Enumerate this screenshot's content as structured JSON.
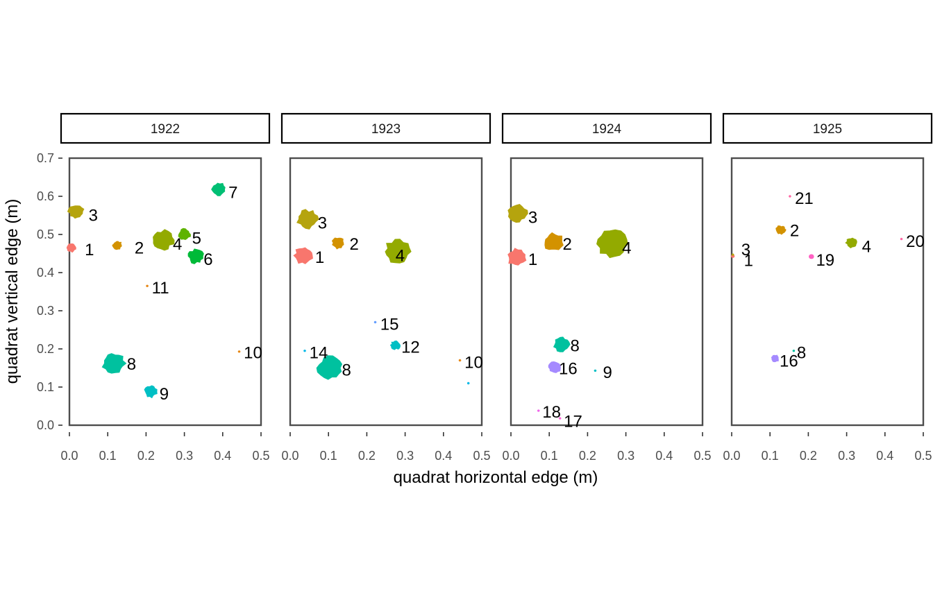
{
  "chart_data": {
    "type": "scatter",
    "xlabel": "quadrat horizontal edge (m)",
    "ylabel": "quadrat vertical edge (m)",
    "xlim": [
      0,
      0.5
    ],
    "ylim": [
      0,
      0.7
    ],
    "x_ticks": [
      "0.0",
      "0.1",
      "0.2",
      "0.3",
      "0.4",
      "0.5"
    ],
    "y_ticks": [
      "0.0",
      "0.1",
      "0.2",
      "0.3",
      "0.4",
      "0.5",
      "0.6",
      "0.7"
    ],
    "legend": "none",
    "grid": false,
    "panels": [
      {
        "title": "1922",
        "plants": [
          {
            "id": "1",
            "x": 0.005,
            "y": 0.465,
            "size": 0.012,
            "color": "#F8766D",
            "lx": 0.04,
            "ly": 0.46
          },
          {
            "id": "2",
            "x": 0.125,
            "y": 0.472,
            "size": 0.012,
            "color": "#D39200",
            "lx": 0.17,
            "ly": 0.465
          },
          {
            "id": "3",
            "x": 0.018,
            "y": 0.56,
            "size": 0.02,
            "color": "#B5A40E",
            "lx": 0.05,
            "ly": 0.55
          },
          {
            "id": "4",
            "x": 0.243,
            "y": 0.485,
            "size": 0.028,
            "color": "#93AA00",
            "lx": 0.27,
            "ly": 0.475
          },
          {
            "id": "5",
            "x": 0.3,
            "y": 0.5,
            "size": 0.016,
            "color": "#5EB300",
            "lx": 0.32,
            "ly": 0.49
          },
          {
            "id": "6",
            "x": 0.33,
            "y": 0.443,
            "size": 0.02,
            "color": "#00BA38",
            "lx": 0.35,
            "ly": 0.435
          },
          {
            "id": "7",
            "x": 0.39,
            "y": 0.618,
            "size": 0.018,
            "color": "#00BF74",
            "lx": 0.415,
            "ly": 0.61
          },
          {
            "id": "8",
            "x": 0.115,
            "y": 0.162,
            "size": 0.03,
            "color": "#00C19F",
            "lx": 0.15,
            "ly": 0.16
          },
          {
            "id": "9",
            "x": 0.212,
            "y": 0.088,
            "size": 0.016,
            "color": "#00BFC4",
            "lx": 0.235,
            "ly": 0.082
          },
          {
            "id": "10",
            "x": 0.443,
            "y": 0.193,
            "size": 0.002,
            "color": "#E68613",
            "lx": 0.455,
            "ly": 0.19
          },
          {
            "id": "11",
            "x": 0.203,
            "y": 0.365,
            "size": 0.002,
            "color": "#E68613",
            "lx": 0.215,
            "ly": 0.36
          }
        ]
      },
      {
        "title": "1923",
        "plants": [
          {
            "id": "1",
            "x": 0.035,
            "y": 0.445,
            "size": 0.024,
            "color": "#F8766D",
            "lx": 0.065,
            "ly": 0.44
          },
          {
            "id": "2",
            "x": 0.125,
            "y": 0.478,
            "size": 0.016,
            "color": "#D39200",
            "lx": 0.155,
            "ly": 0.475
          },
          {
            "id": "3",
            "x": 0.045,
            "y": 0.54,
            "size": 0.026,
            "color": "#B5A40E",
            "lx": 0.072,
            "ly": 0.53
          },
          {
            "id": "4",
            "x": 0.28,
            "y": 0.455,
            "size": 0.034,
            "color": "#93AA00",
            "lx": 0.275,
            "ly": 0.445
          },
          {
            "id": "8",
            "x": 0.105,
            "y": 0.15,
            "size": 0.032,
            "color": "#00C19F",
            "lx": 0.135,
            "ly": 0.145
          },
          {
            "id": "10",
            "x": 0.443,
            "y": 0.17,
            "size": 0.002,
            "color": "#E68613",
            "lx": 0.455,
            "ly": 0.165
          },
          {
            "id": "12",
            "x": 0.275,
            "y": 0.21,
            "size": 0.012,
            "color": "#00BFC4",
            "lx": 0.29,
            "ly": 0.205
          },
          {
            "id": "14",
            "x": 0.038,
            "y": 0.195,
            "size": 0.002,
            "color": "#00B8E7",
            "lx": 0.05,
            "ly": 0.19
          },
          {
            "id": "15",
            "x": 0.222,
            "y": 0.27,
            "size": 0.002,
            "color": "#619CFF",
            "lx": 0.235,
            "ly": 0.265
          },
          {
            "id": "",
            "x": 0.465,
            "y": 0.11,
            "size": 0.002,
            "color": "#00B8E7",
            "lx": 0,
            "ly": 0
          }
        ]
      },
      {
        "title": "1924",
        "plants": [
          {
            "id": "1",
            "x": 0.015,
            "y": 0.44,
            "size": 0.024,
            "color": "#F8766D",
            "lx": 0.045,
            "ly": 0.435
          },
          {
            "id": "2",
            "x": 0.112,
            "y": 0.48,
            "size": 0.026,
            "color": "#D39200",
            "lx": 0.135,
            "ly": 0.475
          },
          {
            "id": "3",
            "x": 0.018,
            "y": 0.555,
            "size": 0.024,
            "color": "#B5A40E",
            "lx": 0.045,
            "ly": 0.545
          },
          {
            "id": "4",
            "x": 0.265,
            "y": 0.475,
            "size": 0.04,
            "color": "#93AA00",
            "lx": 0.29,
            "ly": 0.465
          },
          {
            "id": "8",
            "x": 0.132,
            "y": 0.212,
            "size": 0.02,
            "color": "#00C19F",
            "lx": 0.155,
            "ly": 0.208
          },
          {
            "id": "16",
            "x": 0.115,
            "y": 0.152,
            "size": 0.016,
            "color": "#A58AFF",
            "lx": 0.125,
            "ly": 0.148
          },
          {
            "id": "9",
            "x": 0.22,
            "y": 0.143,
            "size": 0.002,
            "color": "#00BFC4",
            "lx": 0.24,
            "ly": 0.138
          },
          {
            "id": "18",
            "x": 0.072,
            "y": 0.038,
            "size": 0.002,
            "color": "#F066EA",
            "lx": 0.082,
            "ly": 0.035
          },
          {
            "id": "17",
            "x": 0.128,
            "y": 0.018,
            "size": 0.002,
            "color": "#FB61D7",
            "lx": 0.138,
            "ly": 0.01
          }
        ]
      },
      {
        "title": "1925",
        "plants": [
          {
            "id": "1",
            "x": 0.003,
            "y": 0.443,
            "size": 0.004,
            "color": "#F8766D",
            "lx": 0.032,
            "ly": 0.432
          },
          {
            "id": "2",
            "x": 0.128,
            "y": 0.512,
            "size": 0.012,
            "color": "#D39200",
            "lx": 0.152,
            "ly": 0.51
          },
          {
            "id": "3",
            "x": 0.003,
            "y": 0.447,
            "size": 0.002,
            "color": "#B5A40E",
            "lx": 0.025,
            "ly": 0.46
          },
          {
            "id": "4",
            "x": 0.313,
            "y": 0.478,
            "size": 0.014,
            "color": "#93AA00",
            "lx": 0.34,
            "ly": 0.468
          },
          {
            "id": "8",
            "x": 0.162,
            "y": 0.195,
            "size": 0.002,
            "color": "#00C19F",
            "lx": 0.17,
            "ly": 0.19
          },
          {
            "id": "16",
            "x": 0.113,
            "y": 0.175,
            "size": 0.01,
            "color": "#A58AFF",
            "lx": 0.125,
            "ly": 0.168
          },
          {
            "id": "19",
            "x": 0.208,
            "y": 0.442,
            "size": 0.006,
            "color": "#FF61C3",
            "lx": 0.22,
            "ly": 0.433
          },
          {
            "id": "20",
            "x": 0.443,
            "y": 0.488,
            "size": 0.002,
            "color": "#FF67A4",
            "lx": 0.455,
            "ly": 0.482
          },
          {
            "id": "21",
            "x": 0.152,
            "y": 0.6,
            "size": 0.002,
            "color": "#FF67A4",
            "lx": 0.165,
            "ly": 0.595
          }
        ]
      }
    ]
  }
}
